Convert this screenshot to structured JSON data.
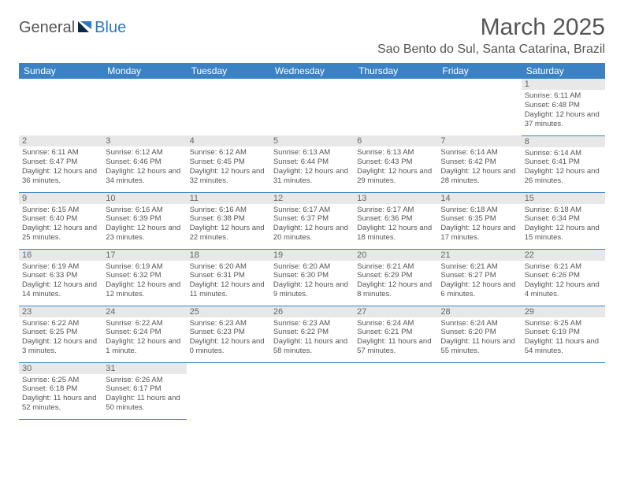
{
  "logo": {
    "text1": "General",
    "text2": "Blue"
  },
  "title": "March 2025",
  "location": "Sao Bento do Sul, Santa Catarina, Brazil",
  "colors": {
    "header_bg": "#3b82c4",
    "header_text": "#ffffff",
    "border": "#3b82c4",
    "daynum_bg": "#e8e8e8",
    "text": "#555555",
    "logo_blue": "#2b78c4"
  },
  "weekdays": [
    "Sunday",
    "Monday",
    "Tuesday",
    "Wednesday",
    "Thursday",
    "Friday",
    "Saturday"
  ],
  "weeks": [
    [
      null,
      null,
      null,
      null,
      null,
      null,
      {
        "n": "1",
        "sr": "6:11 AM",
        "ss": "6:48 PM",
        "dl": "12 hours and 37 minutes."
      }
    ],
    [
      {
        "n": "2",
        "sr": "6:11 AM",
        "ss": "6:47 PM",
        "dl": "12 hours and 36 minutes."
      },
      {
        "n": "3",
        "sr": "6:12 AM",
        "ss": "6:46 PM",
        "dl": "12 hours and 34 minutes."
      },
      {
        "n": "4",
        "sr": "6:12 AM",
        "ss": "6:45 PM",
        "dl": "12 hours and 32 minutes."
      },
      {
        "n": "5",
        "sr": "6:13 AM",
        "ss": "6:44 PM",
        "dl": "12 hours and 31 minutes."
      },
      {
        "n": "6",
        "sr": "6:13 AM",
        "ss": "6:43 PM",
        "dl": "12 hours and 29 minutes."
      },
      {
        "n": "7",
        "sr": "6:14 AM",
        "ss": "6:42 PM",
        "dl": "12 hours and 28 minutes."
      },
      {
        "n": "8",
        "sr": "6:14 AM",
        "ss": "6:41 PM",
        "dl": "12 hours and 26 minutes."
      }
    ],
    [
      {
        "n": "9",
        "sr": "6:15 AM",
        "ss": "6:40 PM",
        "dl": "12 hours and 25 minutes."
      },
      {
        "n": "10",
        "sr": "6:16 AM",
        "ss": "6:39 PM",
        "dl": "12 hours and 23 minutes."
      },
      {
        "n": "11",
        "sr": "6:16 AM",
        "ss": "6:38 PM",
        "dl": "12 hours and 22 minutes."
      },
      {
        "n": "12",
        "sr": "6:17 AM",
        "ss": "6:37 PM",
        "dl": "12 hours and 20 minutes."
      },
      {
        "n": "13",
        "sr": "6:17 AM",
        "ss": "6:36 PM",
        "dl": "12 hours and 18 minutes."
      },
      {
        "n": "14",
        "sr": "6:18 AM",
        "ss": "6:35 PM",
        "dl": "12 hours and 17 minutes."
      },
      {
        "n": "15",
        "sr": "6:18 AM",
        "ss": "6:34 PM",
        "dl": "12 hours and 15 minutes."
      }
    ],
    [
      {
        "n": "16",
        "sr": "6:19 AM",
        "ss": "6:33 PM",
        "dl": "12 hours and 14 minutes."
      },
      {
        "n": "17",
        "sr": "6:19 AM",
        "ss": "6:32 PM",
        "dl": "12 hours and 12 minutes."
      },
      {
        "n": "18",
        "sr": "6:20 AM",
        "ss": "6:31 PM",
        "dl": "12 hours and 11 minutes."
      },
      {
        "n": "19",
        "sr": "6:20 AM",
        "ss": "6:30 PM",
        "dl": "12 hours and 9 minutes."
      },
      {
        "n": "20",
        "sr": "6:21 AM",
        "ss": "6:29 PM",
        "dl": "12 hours and 8 minutes."
      },
      {
        "n": "21",
        "sr": "6:21 AM",
        "ss": "6:27 PM",
        "dl": "12 hours and 6 minutes."
      },
      {
        "n": "22",
        "sr": "6:21 AM",
        "ss": "6:26 PM",
        "dl": "12 hours and 4 minutes."
      }
    ],
    [
      {
        "n": "23",
        "sr": "6:22 AM",
        "ss": "6:25 PM",
        "dl": "12 hours and 3 minutes."
      },
      {
        "n": "24",
        "sr": "6:22 AM",
        "ss": "6:24 PM",
        "dl": "12 hours and 1 minute."
      },
      {
        "n": "25",
        "sr": "6:23 AM",
        "ss": "6:23 PM",
        "dl": "12 hours and 0 minutes."
      },
      {
        "n": "26",
        "sr": "6:23 AM",
        "ss": "6:22 PM",
        "dl": "11 hours and 58 minutes."
      },
      {
        "n": "27",
        "sr": "6:24 AM",
        "ss": "6:21 PM",
        "dl": "11 hours and 57 minutes."
      },
      {
        "n": "28",
        "sr": "6:24 AM",
        "ss": "6:20 PM",
        "dl": "11 hours and 55 minutes."
      },
      {
        "n": "29",
        "sr": "6:25 AM",
        "ss": "6:19 PM",
        "dl": "11 hours and 54 minutes."
      }
    ],
    [
      {
        "n": "30",
        "sr": "6:25 AM",
        "ss": "6:18 PM",
        "dl": "11 hours and 52 minutes."
      },
      {
        "n": "31",
        "sr": "6:26 AM",
        "ss": "6:17 PM",
        "dl": "11 hours and 50 minutes."
      },
      null,
      null,
      null,
      null,
      null
    ]
  ],
  "labels": {
    "sunrise": "Sunrise: ",
    "sunset": "Sunset: ",
    "daylight": "Daylight: "
  }
}
